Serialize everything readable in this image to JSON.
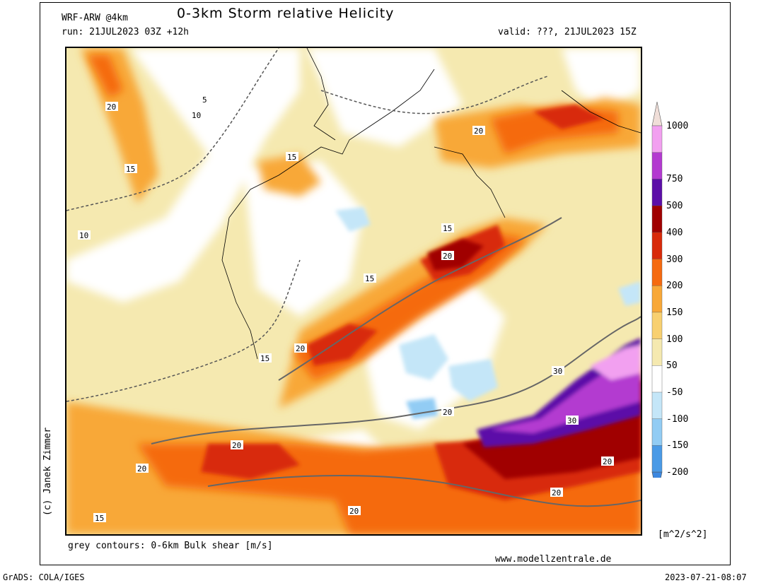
{
  "header": {
    "model": "WRF-ARW @4km",
    "title": "0-3km Storm relative Helicity",
    "run": "run: 21JUL2023 03Z +12h",
    "valid": "valid: ???, 21JUL2023 15Z"
  },
  "copyright": "(c) Janek Zimmer",
  "footer": {
    "contours_note": "grey contours: 0-6km Bulk shear [m/s]",
    "website": "www.modellzentrale.de",
    "grads": "GrADS: COLA/IGES",
    "timestamp": "2023-07-21-08:07"
  },
  "legend": {
    "unit": "[m^2/s^2]",
    "labels": [
      "1000",
      "750",
      "500",
      "400",
      "300",
      "200",
      "150",
      "100",
      "50",
      "-50",
      "-100",
      "-150",
      "-200"
    ],
    "colors": [
      "#f2a0f0",
      "#b33ad0",
      "#5c0ea8",
      "#a00000",
      "#d82a0a",
      "#f56a10",
      "#f8a838",
      "#f8d070",
      "#f5e9b0",
      "#ffffff",
      "#c4e6f8",
      "#92ccf4",
      "#4a9ae6"
    ],
    "top_cap_color": "#f0ded8",
    "bottom_cap_color": "#3c88e0"
  },
  "map": {
    "contour_labels": [
      "5",
      "10",
      "15",
      "20",
      "30"
    ]
  }
}
